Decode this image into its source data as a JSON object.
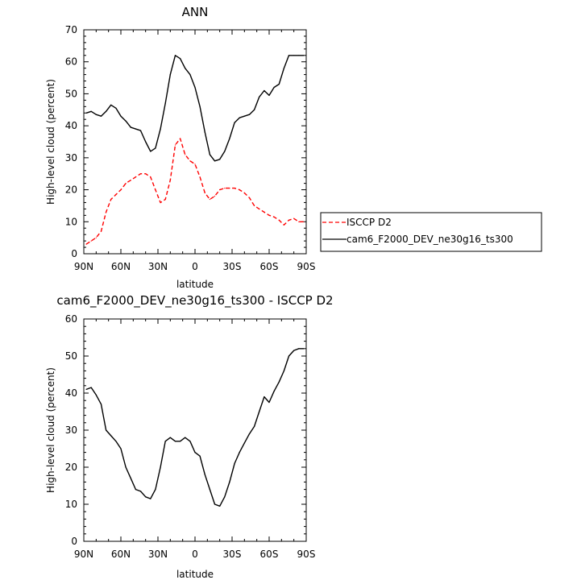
{
  "chart_data": [
    {
      "type": "line",
      "title": "ANN",
      "xlabel": "latitude",
      "ylabel": "High-level cloud (percent)",
      "xlim": [
        -90,
        90
      ],
      "ylim": [
        0,
        70
      ],
      "xticks": [
        -90,
        -60,
        -30,
        0,
        30,
        60,
        90
      ],
      "xtick_labels": [
        "90N",
        "60N",
        "30N",
        "0",
        "30S",
        "60S",
        "90S"
      ],
      "yticks": [
        0,
        10,
        20,
        30,
        40,
        50,
        60,
        70
      ],
      "ytick_labels": [
        "0",
        "10",
        "20",
        "30",
        "40",
        "50",
        "60",
        "70"
      ],
      "legend_position": "right",
      "series": [
        {
          "name": "ISCCP D2",
          "color": "#ff0000",
          "style": "dashed",
          "x": [
            -88,
            -84,
            -80,
            -76,
            -72,
            -68,
            -64,
            -60,
            -56,
            -52,
            -48,
            -44,
            -40,
            -36,
            -32,
            -28,
            -24,
            -20,
            -16,
            -12,
            -8,
            -4,
            0,
            4,
            8,
            12,
            16,
            20,
            24,
            28,
            32,
            36,
            40,
            44,
            48,
            52,
            56,
            60,
            64,
            68,
            72,
            76,
            80,
            84,
            88
          ],
          "y": [
            3,
            4,
            5,
            7,
            13,
            17,
            18.5,
            20,
            22,
            23,
            24,
            25,
            25,
            24,
            20,
            16,
            17,
            23,
            34,
            36,
            31,
            29,
            28,
            24,
            19,
            17,
            18,
            20,
            20.5,
            20.5,
            20.5,
            20,
            19,
            17.5,
            15,
            14,
            13,
            12,
            11.5,
            10.5,
            9,
            10.5,
            11,
            10,
            10
          ]
        },
        {
          "name": "cam6_F2000_DEV_ne30g16_ts300",
          "color": "#000000",
          "style": "solid",
          "x": [
            -88,
            -84,
            -80,
            -76,
            -72,
            -68,
            -64,
            -60,
            -56,
            -52,
            -48,
            -44,
            -40,
            -36,
            -32,
            -28,
            -24,
            -20,
            -16,
            -12,
            -8,
            -4,
            0,
            4,
            8,
            12,
            16,
            20,
            24,
            28,
            32,
            36,
            40,
            44,
            48,
            52,
            56,
            60,
            64,
            68,
            72,
            76,
            80,
            84,
            88
          ],
          "y": [
            44,
            44.5,
            43.5,
            43,
            44.5,
            46.5,
            45.5,
            43,
            41.5,
            39.5,
            39,
            38.5,
            35,
            32,
            33,
            39,
            47,
            56,
            62,
            61,
            58,
            56,
            52,
            46,
            38,
            31,
            29,
            29.5,
            32,
            36,
            41,
            42.5,
            43,
            43.5,
            45,
            49,
            51,
            49.5,
            52,
            53,
            58,
            62,
            62,
            62,
            62
          ]
        }
      ]
    },
    {
      "type": "line",
      "title": "cam6_F2000_DEV_ne30g16_ts300 - ISCCP D2",
      "xlabel": "latitude",
      "ylabel": "High-level cloud (percent)",
      "xlim": [
        -90,
        90
      ],
      "ylim": [
        0,
        60
      ],
      "xticks": [
        -90,
        -60,
        -30,
        0,
        30,
        60,
        90
      ],
      "xtick_labels": [
        "90N",
        "60N",
        "30N",
        "0",
        "30S",
        "60S",
        "90S"
      ],
      "yticks": [
        0,
        10,
        20,
        30,
        40,
        50,
        60
      ],
      "ytick_labels": [
        "0",
        "10",
        "20",
        "30",
        "40",
        "50",
        "60"
      ],
      "series": [
        {
          "color": "#000000",
          "style": "solid",
          "x": [
            -88,
            -84,
            -80,
            -76,
            -72,
            -68,
            -64,
            -60,
            -56,
            -52,
            -48,
            -44,
            -40,
            -36,
            -32,
            -28,
            -24,
            -20,
            -16,
            -12,
            -8,
            -4,
            0,
            4,
            8,
            12,
            16,
            20,
            24,
            28,
            32,
            36,
            40,
            44,
            48,
            52,
            56,
            60,
            64,
            68,
            72,
            76,
            80,
            84,
            88
          ],
          "y": [
            41,
            41.5,
            39.5,
            37,
            30,
            28.5,
            27,
            25,
            20,
            17,
            14,
            13.5,
            12,
            11.5,
            14,
            20,
            27,
            28,
            27,
            27,
            28,
            27,
            24,
            23,
            18,
            14,
            10,
            9.5,
            12,
            16,
            21,
            24,
            26.5,
            29,
            31,
            35,
            39,
            37.5,
            40.5,
            43,
            46,
            50,
            51.5,
            52,
            52
          ]
        }
      ]
    }
  ]
}
